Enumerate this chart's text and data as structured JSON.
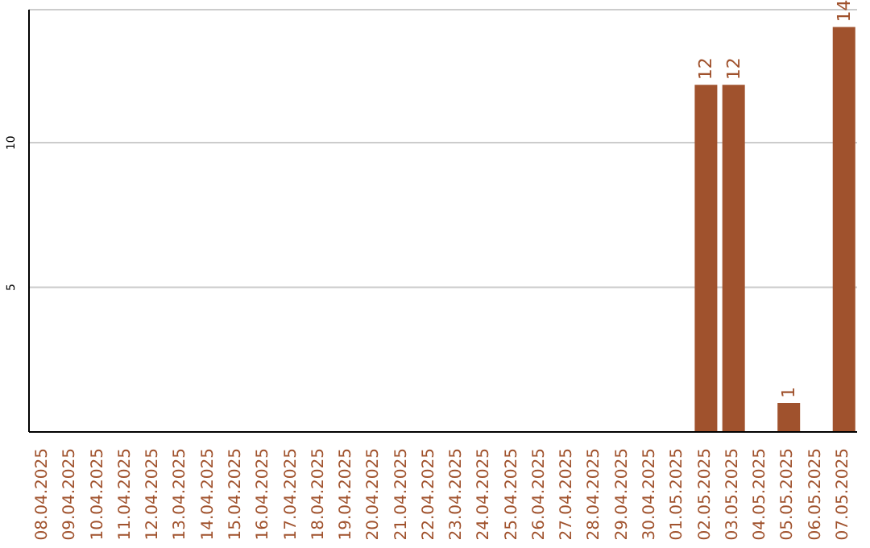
{
  "chart_data": {
    "type": "bar",
    "categories": [
      "08.04.2025",
      "09.04.2025",
      "10.04.2025",
      "11.04.2025",
      "12.04.2025",
      "13.04.2025",
      "14.04.2025",
      "15.04.2025",
      "16.04.2025",
      "17.04.2025",
      "18.04.2025",
      "19.04.2025",
      "20.04.2025",
      "21.04.2025",
      "22.04.2025",
      "23.04.2025",
      "24.04.2025",
      "25.04.2025",
      "26.04.2025",
      "27.04.2025",
      "28.04.2025",
      "29.04.2025",
      "30.04.2025",
      "01.05.2025",
      "02.05.2025",
      "03.05.2025",
      "04.05.2025",
      "05.05.2025",
      "06.05.2025",
      "07.05.2025"
    ],
    "values": [
      0,
      0,
      0,
      0,
      0,
      0,
      0,
      0,
      0,
      0,
      0,
      0,
      0,
      0,
      0,
      0,
      0,
      0,
      0,
      0,
      0,
      0,
      0,
      0,
      12,
      12,
      0,
      1,
      0,
      14
    ],
    "value_labels": [
      null,
      null,
      null,
      null,
      null,
      null,
      null,
      null,
      null,
      null,
      null,
      null,
      null,
      null,
      null,
      null,
      null,
      null,
      null,
      null,
      null,
      null,
      null,
      null,
      "12",
      "12",
      null,
      "1",
      null,
      "14"
    ],
    "color": "#a0522d",
    "ylim": [
      0,
      14.6
    ],
    "yticks": [
      5,
      10
    ],
    "grid": "y",
    "legend": false
  }
}
